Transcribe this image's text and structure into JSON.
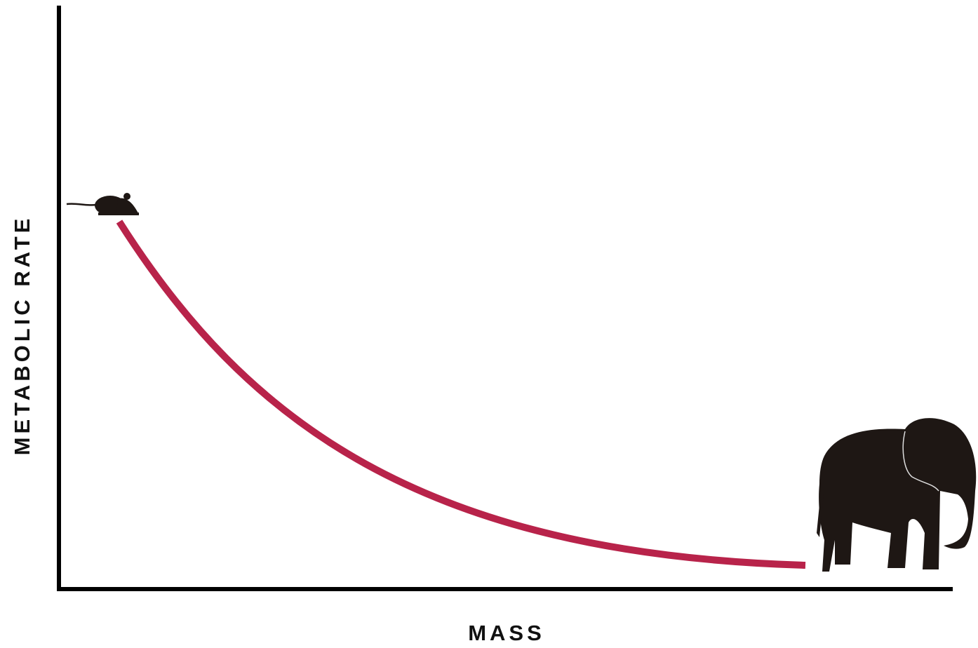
{
  "axes": {
    "y_label": "METABOLIC RATE",
    "x_label": "MASS"
  }
}
